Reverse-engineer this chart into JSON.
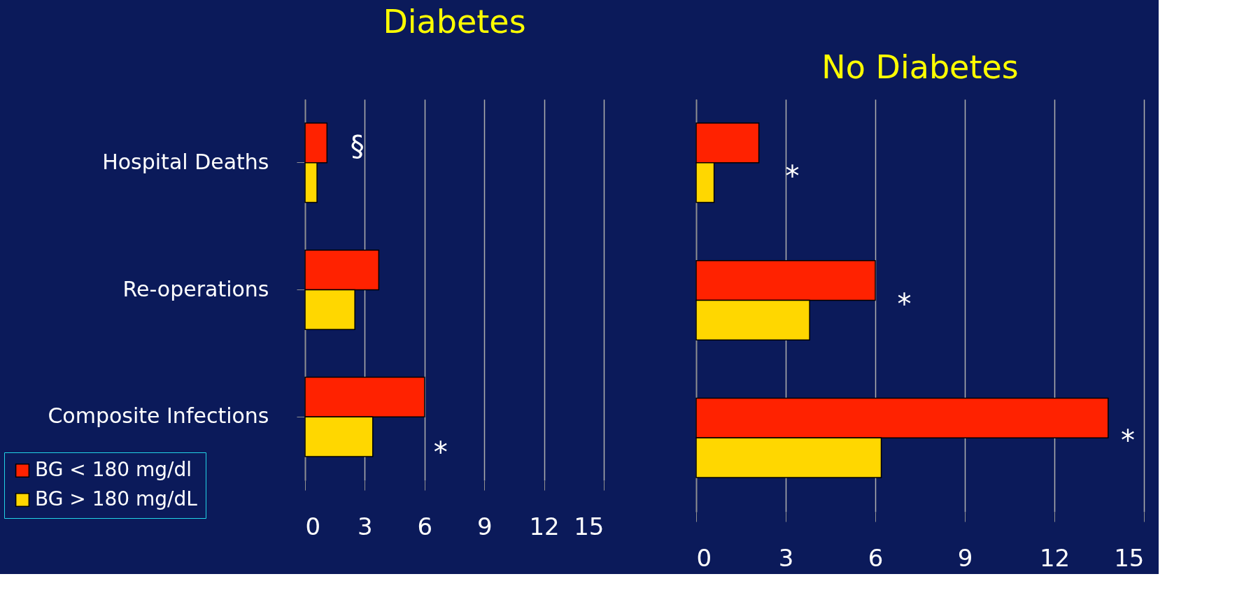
{
  "chart_data": [
    {
      "type": "bar",
      "orientation": "horizontal",
      "title": "Diabetes",
      "categories": [
        "Hospital Deaths",
        "Re-operations",
        "Composite Infections"
      ],
      "series": [
        {
          "name": "BG < 180 mg/dl",
          "color": "#ff2200",
          "values": [
            1.1,
            3.7,
            6.0
          ]
        },
        {
          "name": "BG > 180 mg/dL",
          "color": "#ffd700",
          "values": [
            0.6,
            2.5,
            3.4
          ]
        }
      ],
      "xlim": [
        0,
        15
      ],
      "xticks": [
        0,
        3,
        6,
        9,
        12,
        15
      ],
      "grid": "x",
      "legend": "bottom left",
      "annotations": [
        "§",
        "*"
      ]
    },
    {
      "type": "bar",
      "orientation": "horizontal",
      "title": "No Diabetes",
      "categories": [
        null,
        null,
        null
      ],
      "series": [
        {
          "name": "BG < 180 mg/dl",
          "color": "#ff2200",
          "values": [
            2.1,
            6.0,
            13.8
          ]
        },
        {
          "name": "BG > 180 mg/dL",
          "color": "#ffd700",
          "values": [
            0.6,
            3.8,
            6.2
          ]
        }
      ],
      "xlim": [
        0,
        15
      ],
      "xticks": [
        0,
        3,
        6,
        9,
        12,
        15
      ],
      "grid": "x",
      "tick_labels": "x",
      "annotations": [
        "*",
        "*",
        "*"
      ]
    }
  ]
}
